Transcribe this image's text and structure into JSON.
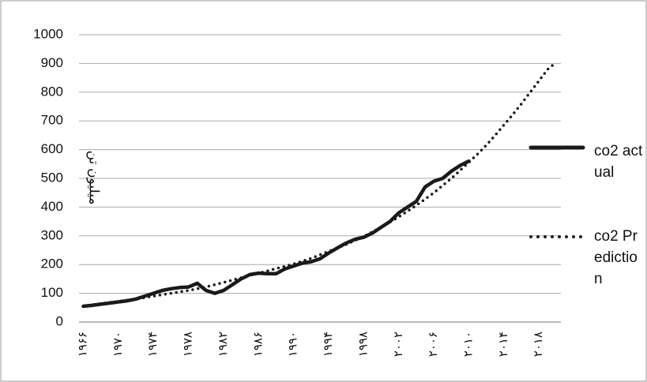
{
  "chart_data": {
    "type": "line",
    "ylabel": "میلیون تن",
    "categories": [
      "۱۹۶۶",
      null,
      null,
      null,
      "۱۹۷۰",
      null,
      null,
      null,
      "۱۹۷۴",
      null,
      null,
      null,
      "۱۹۷۸",
      null,
      null,
      null,
      "۱۹۸۲",
      null,
      null,
      null,
      "۱۹۸۶",
      null,
      null,
      null,
      "۱۹۹۰",
      null,
      null,
      null,
      "۱۹۹۴",
      null,
      null,
      null,
      "۱۹۹۸",
      null,
      null,
      null,
      "۲۰۰۲",
      null,
      null,
      null,
      "۲۰۰۶",
      null,
      null,
      null,
      "۲۰۱۰",
      null,
      null,
      null,
      "۲۰۱۴",
      null,
      null,
      null,
      "۲۰۱۸",
      null,
      null
    ],
    "series": [
      {
        "name": "co2 actual",
        "color": "#1a1a1a",
        "style": "solid",
        "values": [
          55,
          58,
          62,
          66,
          70,
          74,
          80,
          90,
          100,
          110,
          116,
          120,
          122,
          135,
          110,
          100,
          110,
          130,
          150,
          165,
          170,
          168,
          168,
          185,
          195,
          205,
          210,
          220,
          240,
          258,
          275,
          288,
          295,
          310,
          330,
          350,
          380,
          400,
          420,
          470,
          490,
          500,
          525,
          545,
          560,
          null,
          null,
          null,
          null,
          null,
          null,
          null,
          null,
          null,
          null
        ]
      },
      {
        "name": "co2 Prediction",
        "color": "#1a1a1a",
        "style": "dotted",
        "values": [
          55,
          60,
          64,
          68,
          72,
          76,
          80,
          85,
          90,
          95,
          100,
          105,
          110,
          116,
          122,
          130,
          138,
          146,
          154,
          162,
          170,
          178,
          186,
          194,
          202,
          212,
          222,
          234,
          246,
          258,
          270,
          284,
          298,
          314,
          330,
          348,
          366,
          386,
          406,
          428,
          450,
          475,
          500,
          528,
          556,
          585,
          616,
          650,
          686,
          722,
          760,
          800,
          840,
          880,
          905
        ]
      }
    ],
    "ylim": [
      0,
      1000
    ],
    "yticks": [
      0,
      100,
      200,
      300,
      400,
      500,
      600,
      700,
      800,
      900,
      1000
    ],
    "grid": true,
    "legend": "right"
  }
}
